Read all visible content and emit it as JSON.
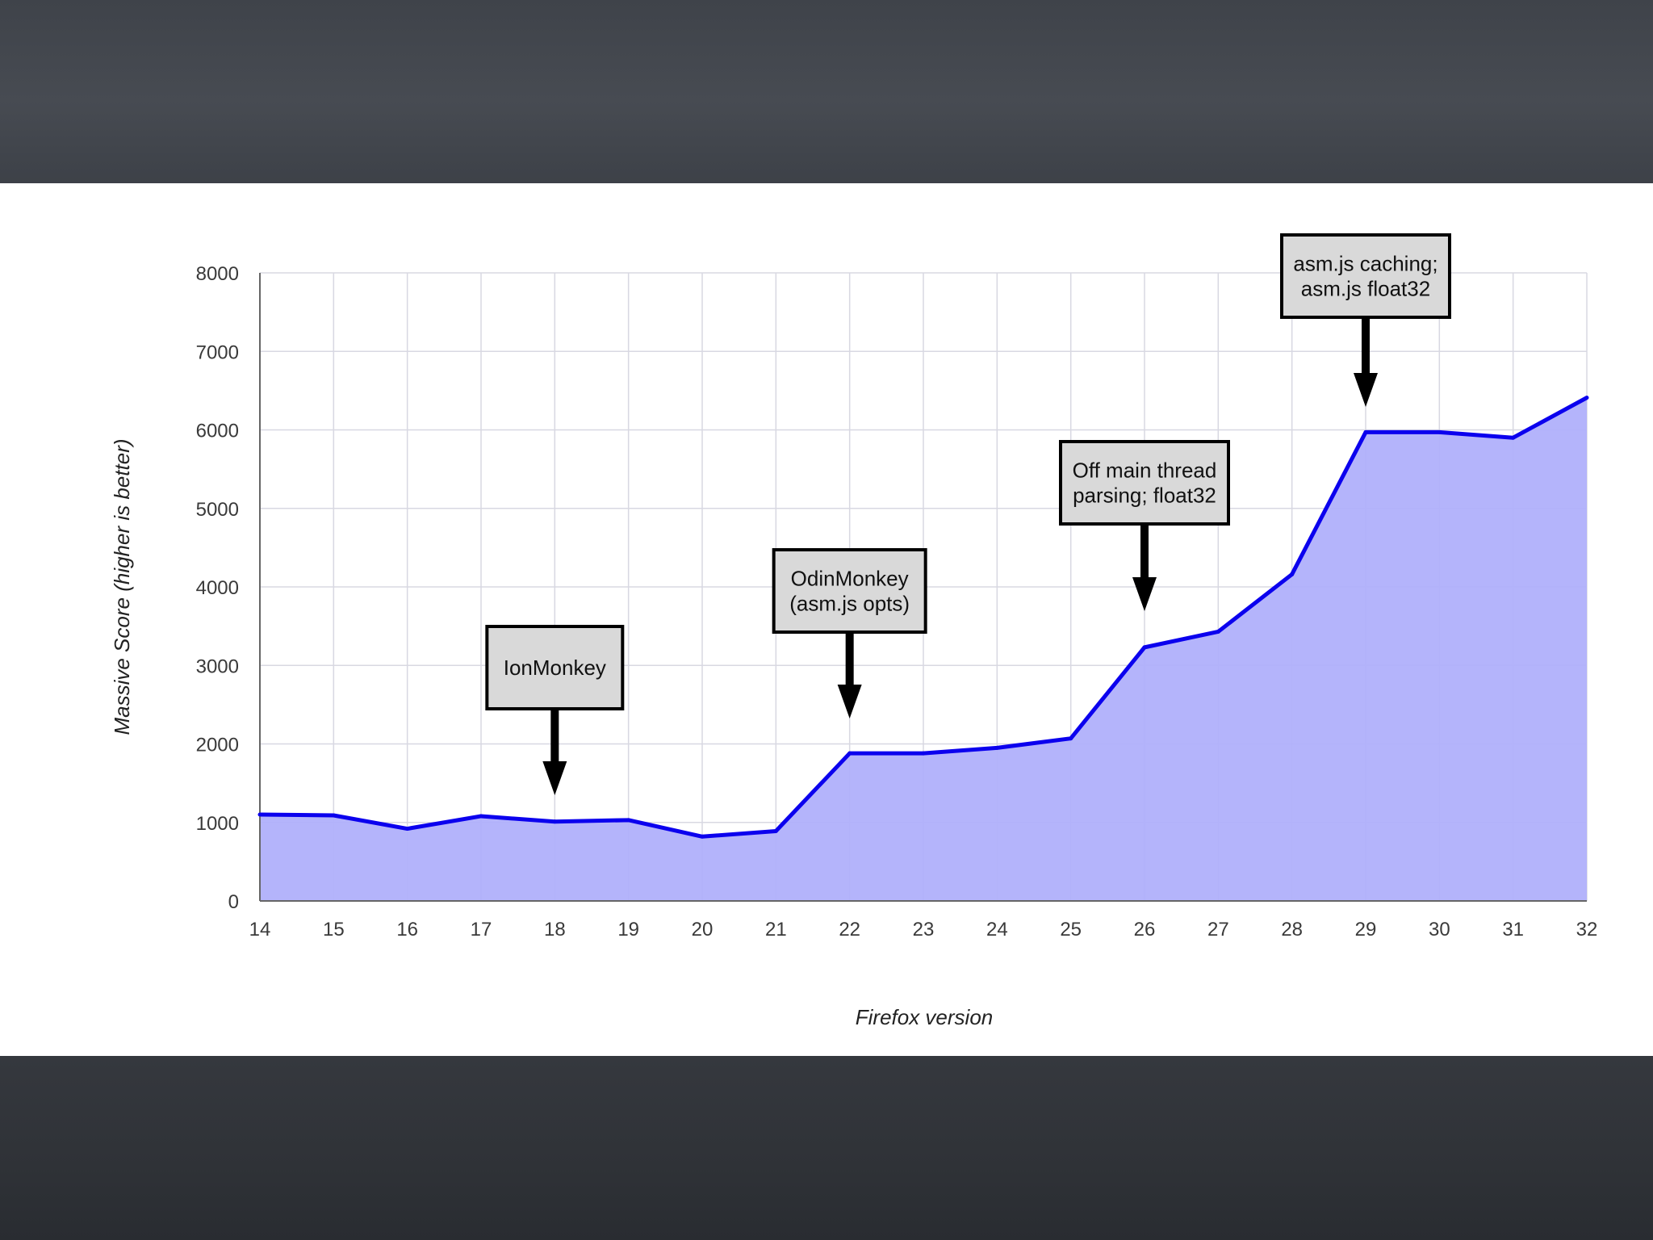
{
  "colors": {
    "line": "#0b00ee",
    "fill": "#b0b0fb",
    "grid": "#d8d8e2",
    "annotation_box": "#d9d9d9"
  },
  "chart_data": {
    "type": "area",
    "title": "",
    "xlabel": "Firefox version",
    "ylabel": "Massive Score (higher is better)",
    "x": [
      14,
      15,
      16,
      17,
      18,
      19,
      20,
      21,
      22,
      23,
      24,
      25,
      26,
      27,
      28,
      29,
      30,
      31,
      32
    ],
    "series": [
      {
        "values": [
          1100,
          1090,
          920,
          1080,
          1010,
          1030,
          820,
          890,
          1880,
          1880,
          1950,
          2070,
          3230,
          3430,
          4160,
          5970,
          5970,
          5900,
          6410
        ]
      }
    ],
    "xlim": [
      14,
      32
    ],
    "ylim": [
      0,
      8000
    ],
    "yticks": [
      0,
      1000,
      2000,
      3000,
      4000,
      5000,
      6000,
      7000,
      8000
    ],
    "grid": true,
    "legend": "none",
    "annotations": [
      {
        "x": 18,
        "lines": [
          "IonMonkey"
        ]
      },
      {
        "x": 22,
        "lines": [
          "OdinMonkey",
          "(asm.js opts)"
        ]
      },
      {
        "x": 26,
        "lines": [
          "Off main thread",
          "parsing; float32"
        ]
      },
      {
        "x": 29,
        "lines": [
          "asm.js caching;",
          "asm.js float32"
        ]
      }
    ]
  }
}
